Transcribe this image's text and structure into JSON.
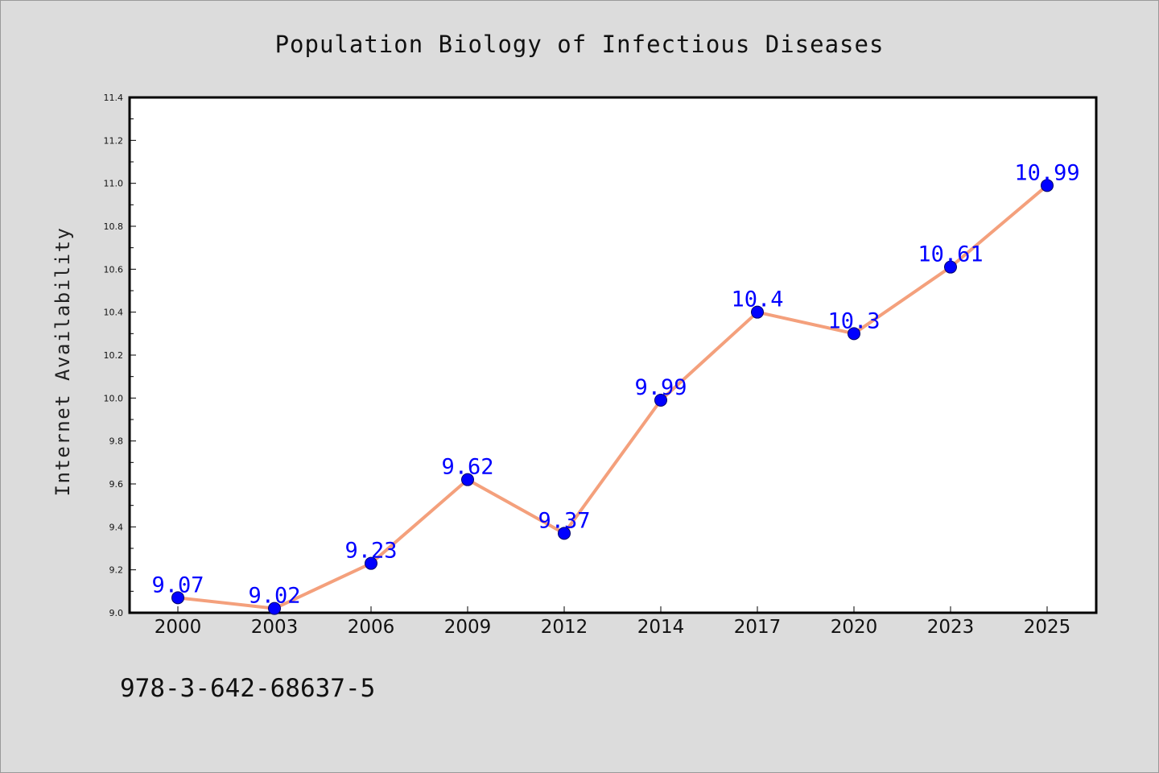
{
  "chart_data": {
    "type": "line",
    "title": "Population Biology of Infectious Diseases",
    "xlabel": "",
    "ylabel": "Internet Availability",
    "categories": [
      "2000",
      "2003",
      "2006",
      "2009",
      "2012",
      "2014",
      "2017",
      "2020",
      "2023",
      "2025"
    ],
    "series": [
      {
        "values": [
          9.07,
          9.02,
          9.23,
          9.62,
          9.37,
          9.99,
          10.4,
          10.3,
          10.61,
          10.99
        ],
        "labels": [
          "9.07",
          "9.02",
          "9.23",
          "9.62",
          "9.37",
          "9.99",
          "10.4",
          "10.3",
          "10.61",
          "10.99"
        ]
      }
    ],
    "yticks": [
      "9.0",
      "9.2",
      "9.4",
      "9.6",
      "9.8",
      "10.0",
      "10.2",
      "10.4",
      "10.6",
      "10.8",
      "11.0",
      "11.2",
      "11.4"
    ],
    "ylim": [
      9.0,
      11.4
    ],
    "grid": false,
    "colors": {
      "line": "#f4a07c",
      "marker": "#0000ff",
      "data_label": "#0000ff",
      "plot_background": "#ffffff",
      "figure_background": "#dcdcdc"
    }
  },
  "footer": {
    "isbn": "978-3-642-68637-5"
  }
}
